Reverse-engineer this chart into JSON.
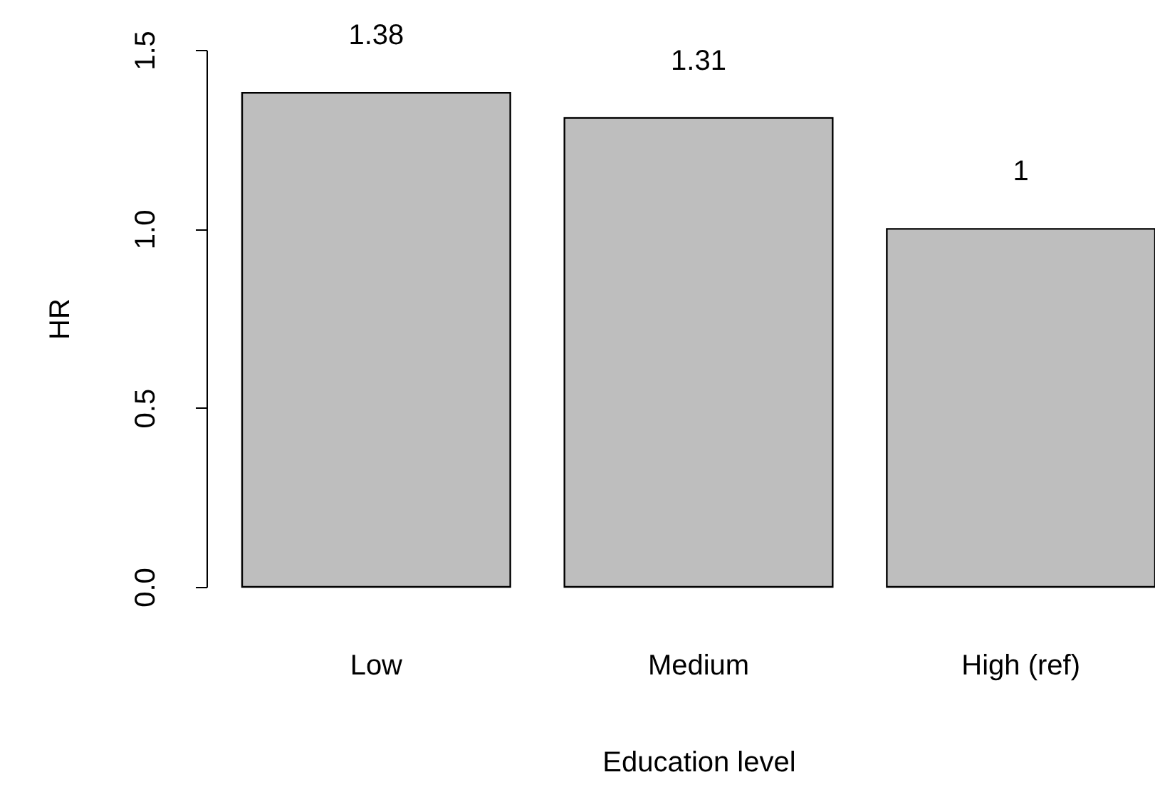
{
  "chart_data": {
    "type": "bar",
    "xlabel": "Education level",
    "ylabel": "HR",
    "categories": [
      "Low",
      "Medium",
      "High (ref)"
    ],
    "values": [
      1.38,
      1.31,
      1
    ],
    "color": "#bebebe",
    "ylim": [
      0,
      1.5
    ],
    "yticks": [
      {
        "value": 0,
        "label": "0.0"
      },
      {
        "value": 0.5,
        "label": "0.5"
      },
      {
        "value": 1,
        "label": "1.0"
      },
      {
        "value": 1.5,
        "label": "1.5"
      }
    ],
    "data_labels": true,
    "grid": false
  }
}
